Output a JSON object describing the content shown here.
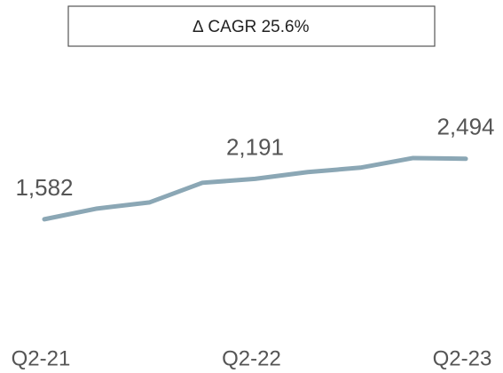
{
  "chart_data": {
    "type": "line",
    "annotation": "∆ CAGR 25.6%",
    "categories": [
      "Q2-21",
      null,
      null,
      null,
      "Q2-22",
      null,
      null,
      null,
      "Q2-23"
    ],
    "series": [
      {
        "color": "#8ba7b5",
        "values": [
          1582,
          1743,
          1837,
          2132,
          2191,
          2293,
          2360,
          2505,
          2494
        ],
        "value_labels": [
          "1,582",
          null,
          null,
          null,
          "2,191",
          null,
          null,
          null,
          "2,494"
        ]
      }
    ],
    "ylim": [
      0,
      3000
    ]
  }
}
